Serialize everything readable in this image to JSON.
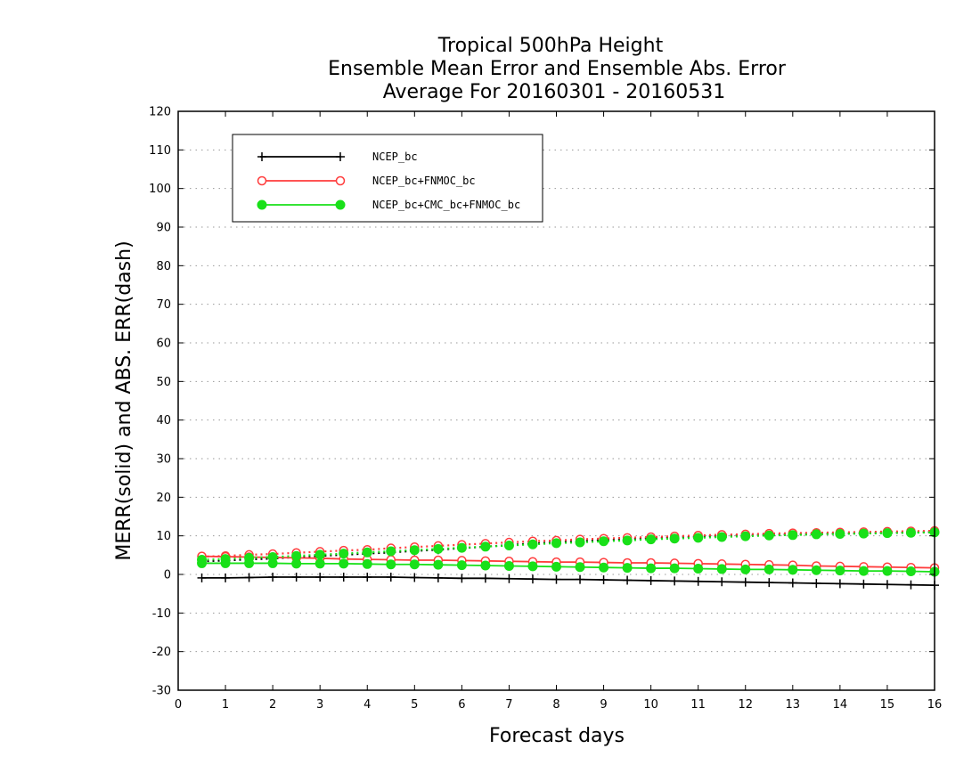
{
  "chart_data": {
    "type": "line",
    "title": [
      "Tropical 500hPa Height",
      "Ensemble Mean Error and Ensemble Abs. Error",
      "Average For 20160301 - 20160531"
    ],
    "xlabel": "Forecast days",
    "ylabel": "MERR(solid) and ABS. ERR(dash)",
    "xlim": [
      0,
      16
    ],
    "ylim": [
      -30,
      120
    ],
    "xticks": [
      "0",
      "1",
      "2",
      "3",
      "4",
      "5",
      "6",
      "7",
      "8",
      "9",
      "10",
      "11",
      "12",
      "13",
      "14",
      "15",
      "16"
    ],
    "yticks": [
      "-30",
      "-20",
      "-10",
      "0",
      "10",
      "20",
      "30",
      "40",
      "50",
      "60",
      "70",
      "80",
      "90",
      "100",
      "110",
      "120"
    ],
    "grid": "horizontal dotted",
    "legend_position": "top-left",
    "x": [
      0.5,
      1,
      1.5,
      2,
      2.5,
      3,
      3.5,
      4,
      4.5,
      5,
      5.5,
      6,
      6.5,
      7,
      7.5,
      8,
      8.5,
      9,
      9.5,
      10,
      10.5,
      11,
      11.5,
      12,
      12.5,
      13,
      13.5,
      14,
      14.5,
      15,
      15.5,
      16
    ],
    "series": [
      {
        "name": "NCEP_bc",
        "color": "#000000",
        "marker": "plus",
        "merr": [
          -0.9,
          -0.9,
          -0.8,
          -0.7,
          -0.7,
          -0.7,
          -0.7,
          -0.7,
          -0.7,
          -0.8,
          -0.9,
          -1.0,
          -1.0,
          -1.1,
          -1.2,
          -1.3,
          -1.3,
          -1.4,
          -1.5,
          -1.6,
          -1.7,
          -1.8,
          -1.9,
          -2.0,
          -2.1,
          -2.2,
          -2.3,
          -2.4,
          -2.5,
          -2.6,
          -2.7,
          -2.8
        ],
        "abs_err": [
          3.4,
          3.6,
          3.9,
          4.1,
          4.5,
          4.8,
          5.1,
          5.4,
          5.7,
          6.1,
          6.4,
          6.8,
          7.2,
          7.6,
          8.0,
          8.3,
          8.6,
          8.9,
          9.1,
          9.4,
          9.6,
          9.8,
          10.0,
          10.2,
          10.3,
          10.4,
          10.5,
          10.6,
          10.7,
          10.8,
          10.9,
          11.0
        ]
      },
      {
        "name": "NCEP_bc+FNMOC_bc",
        "color": "#ff3b3b",
        "marker": "open-circle",
        "merr": [
          4.7,
          4.6,
          4.5,
          4.4,
          4.3,
          4.2,
          4.0,
          3.9,
          3.8,
          3.7,
          3.7,
          3.6,
          3.5,
          3.4,
          3.3,
          3.2,
          3.2,
          3.1,
          3.0,
          3.0,
          2.9,
          2.8,
          2.7,
          2.6,
          2.5,
          2.4,
          2.2,
          2.1,
          2.0,
          1.9,
          1.8,
          1.7
        ],
        "abs_err": [
          4.6,
          4.8,
          5.1,
          5.3,
          5.6,
          5.9,
          6.2,
          6.4,
          6.8,
          7.1,
          7.4,
          7.7,
          8.0,
          8.3,
          8.6,
          8.8,
          9.1,
          9.3,
          9.5,
          9.7,
          9.9,
          10.1,
          10.3,
          10.4,
          10.6,
          10.7,
          10.8,
          10.9,
          11.0,
          11.1,
          11.2,
          11.3
        ]
      },
      {
        "name": "NCEP_bc+CMC_bc+FNMOC_bc",
        "color": "#19e019",
        "marker": "filled-circle",
        "merr": [
          2.9,
          2.9,
          2.9,
          2.9,
          2.8,
          2.8,
          2.8,
          2.7,
          2.6,
          2.6,
          2.5,
          2.4,
          2.3,
          2.2,
          2.1,
          2.0,
          1.9,
          1.8,
          1.7,
          1.6,
          1.6,
          1.5,
          1.4,
          1.3,
          1.3,
          1.2,
          1.1,
          1.0,
          0.9,
          0.9,
          0.8,
          0.7
        ],
        "abs_err": [
          3.8,
          4.0,
          4.3,
          4.5,
          4.8,
          5.1,
          5.4,
          5.7,
          6.0,
          6.3,
          6.6,
          6.9,
          7.2,
          7.5,
          7.8,
          8.1,
          8.3,
          8.6,
          8.8,
          9.1,
          9.3,
          9.5,
          9.7,
          9.9,
          10.1,
          10.2,
          10.4,
          10.5,
          10.6,
          10.7,
          10.8,
          10.9
        ]
      }
    ]
  }
}
